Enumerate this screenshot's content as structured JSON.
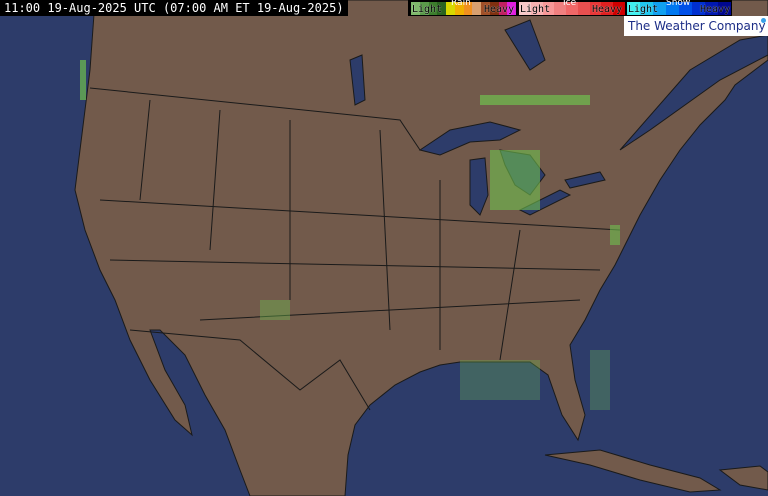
{
  "header": {
    "timestamp": "11:00 19-Aug-2025 UTC (07:00 AM ET 19-Aug-2025)"
  },
  "legend": {
    "rain": {
      "title": "Rain",
      "light": "Light",
      "heavy": "Heavy",
      "colors": [
        "#7fb86b",
        "#5a9a4a",
        "#3c7d2c",
        "#2a6420",
        "#d8d800",
        "#f0b000",
        "#f09020",
        "#d8a070",
        "#a05028",
        "#803010",
        "#c02060",
        "#e020e0"
      ]
    },
    "ice": {
      "title": "Ice",
      "light": "Light",
      "heavy": "Heavy",
      "colors": [
        "#f8c8c8",
        "#f8b0b0",
        "#f89898",
        "#f08080",
        "#f06868",
        "#e85050",
        "#e83838",
        "#e02020",
        "#d00000"
      ]
    },
    "snow": {
      "title": "Snow",
      "light": "Light",
      "heavy": "Heavy",
      "colors": [
        "#40f0f0",
        "#20c8f0",
        "#10a0f0",
        "#0078f0",
        "#0050e8",
        "#0030d0",
        "#0018b0",
        "#000890"
      ]
    }
  },
  "brand": "The Weather Company",
  "colors": {
    "ocean": "#2d3c6a",
    "land": "#725a4b",
    "borders": "#1a1a1a",
    "precip": "#6fbf4f"
  }
}
